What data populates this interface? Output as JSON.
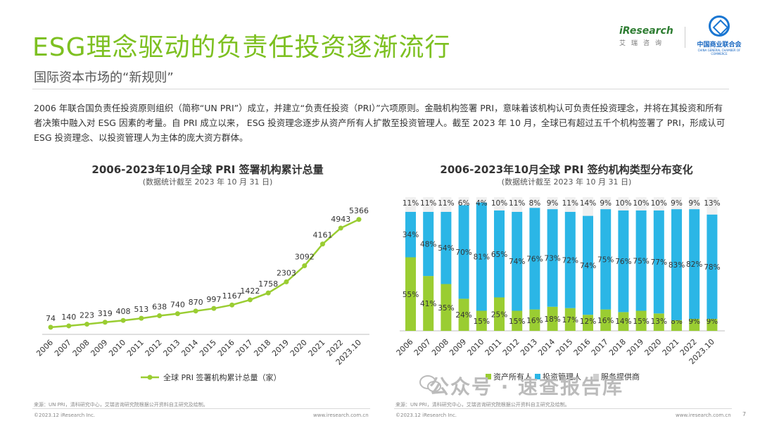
{
  "header": {
    "title": "ESG理念驱动的负责任投资逐渐流行",
    "subtitle": "国际资本市场的“新规则”",
    "paragraph": "2006 年联合国负责任投资原则组织（简称“UN PRI”）成立，并建立“负责任投资（PRI）”六项原则。金融机构签署 PRI，意味着该机构认可负责任投资理念，并将在其投资和所有者决策中融入对 ESG 因素的考量。自 PRI 成立以来， ESG 投资理念逐步从资产所有人扩散至投资管理人。截至 2023 年 10 月，全球已有超过五千个机构签署了 PRI，形成认可 ESG 投资理念、以投资管理人为主体的庞大资方群体。"
  },
  "logos": {
    "iresearch_brand": "iResearch",
    "iresearch_cn": "艾瑞咨询",
    "cgcc_cn": "中国商业联合会",
    "cgcc_en": "CHINA GENERAL CHAMBER OF COMMERCE"
  },
  "colors": {
    "accent": "#7dc021",
    "blue": "#2bb6e6",
    "light": "#f0f0f0"
  },
  "chart_data": [
    {
      "type": "line",
      "title": "2006-2023年10月全球 PRI 签署机构累计总量",
      "subtitle": "(数据统计截至 2023 年 10 月 31 日)",
      "x": [
        "2006",
        "2007",
        "2008",
        "2009",
        "2010",
        "2011",
        "2012",
        "2013",
        "2014",
        "2015",
        "2016",
        "2017",
        "2018",
        "2019",
        "2020",
        "2021",
        "2022",
        "2023.10"
      ],
      "series": [
        {
          "name": "全球 PRI 签署机构累计总量（家）",
          "values": [
            74,
            140,
            223,
            319,
            408,
            513,
            638,
            740,
            870,
            997,
            1167,
            1422,
            1758,
            2303,
            3092,
            4161,
            4943,
            5366
          ]
        }
      ],
      "ylim": [
        0,
        5600
      ],
      "legend": "bottom"
    },
    {
      "type": "bar",
      "stacked": true,
      "title": "2006-2023年10月全球 PRI 签约机构类型分布变化",
      "subtitle": "(数据统计截至 2023 年 10 月 31 日)",
      "categories": [
        "2006",
        "2007",
        "2008",
        "2009",
        "2010",
        "2011",
        "2012",
        "2013",
        "2014",
        "2015",
        "2016",
        "2017",
        "2018",
        "2019",
        "2020",
        "2021",
        "2022",
        "2023.10"
      ],
      "series": [
        {
          "name": "资产所有人",
          "values": [
            55,
            41,
            35,
            24,
            15,
            25,
            15,
            16,
            18,
            17,
            12,
            16,
            14,
            15,
            13,
            8,
            9,
            9
          ]
        },
        {
          "name": "投资管理人",
          "values": [
            34,
            48,
            54,
            70,
            81,
            65,
            74,
            76,
            73,
            72,
            74,
            75,
            76,
            75,
            77,
            83,
            82,
            78
          ]
        },
        {
          "name": "服务提供商",
          "values": [
            11,
            11,
            11,
            6,
            4,
            10,
            11,
            8,
            9,
            11,
            14,
            9,
            10,
            10,
            10,
            9,
            9,
            13
          ]
        }
      ],
      "ylim": [
        0,
        100
      ],
      "legend": "bottom"
    }
  ],
  "footer": {
    "source_left": "来源：UN PRI，清科研究中心，艾瑞咨询研究院根据公开资料自主研究及绘制。",
    "source_right": "来源：UN PRI，清科研究中心，艾瑞咨询研究院根据公开资料自主研究及绘制。",
    "copyright_left": "©2023.12 iResearch Inc.",
    "url_left": "www.iresearch.com.cn",
    "copyright_right": "©2023.12 iResearch Inc.",
    "url_right": "www.iresearch.com.cn",
    "page": "7",
    "watermark": "公众号 · 速查报告库"
  }
}
